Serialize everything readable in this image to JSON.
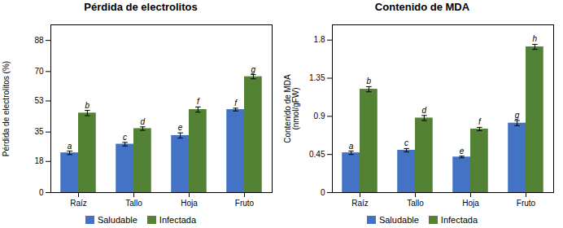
{
  "chart_data": [
    {
      "type": "bar",
      "title": "Pérdida de electrolitos",
      "ylabel": "Pérdida de electrolitos (%)",
      "categories": [
        "Raíz",
        "Tallo",
        "Hoja",
        "Fruto"
      ],
      "series": [
        {
          "name": "Saludable",
          "color": "#4472C4",
          "values": [
            23,
            28,
            33,
            48
          ],
          "errors": [
            1.0,
            1.0,
            1.5,
            0.8
          ],
          "annotations": [
            "a",
            "c",
            "e",
            "f"
          ]
        },
        {
          "name": "Infectada",
          "color": "#548235",
          "values": [
            46,
            37,
            48,
            67
          ],
          "errors": [
            1.5,
            1.0,
            1.5,
            1.2
          ],
          "annotations": [
            "b",
            "d",
            "f",
            "g"
          ]
        }
      ],
      "ylim": [
        0,
        97
      ],
      "yticks": [
        0,
        18,
        35,
        53,
        70,
        88
      ],
      "grid": false,
      "legend": "bottom"
    },
    {
      "type": "bar",
      "title": "Contenido de MDA",
      "ylabel": "Contenido de MDA\n(nmol/gFW)",
      "categories": [
        "Raíz",
        "Tallo",
        "Hoja",
        "Fruto"
      ],
      "series": [
        {
          "name": "Saludable",
          "color": "#4472C4",
          "values": [
            0.47,
            0.5,
            0.42,
            0.82
          ],
          "errors": [
            0.02,
            0.02,
            0.01,
            0.03
          ],
          "annotations": [
            "a",
            "c",
            "e",
            "g"
          ]
        },
        {
          "name": "Infectada",
          "color": "#548235",
          "values": [
            1.22,
            0.88,
            0.75,
            1.72
          ],
          "errors": [
            0.03,
            0.03,
            0.02,
            0.03
          ],
          "annotations": [
            "b",
            "d",
            "f",
            "h"
          ]
        }
      ],
      "ylim": [
        0,
        1.98
      ],
      "yticks": [
        0,
        0.45,
        0.9,
        1.35,
        1.8
      ],
      "grid": false,
      "legend": "bottom"
    }
  ]
}
